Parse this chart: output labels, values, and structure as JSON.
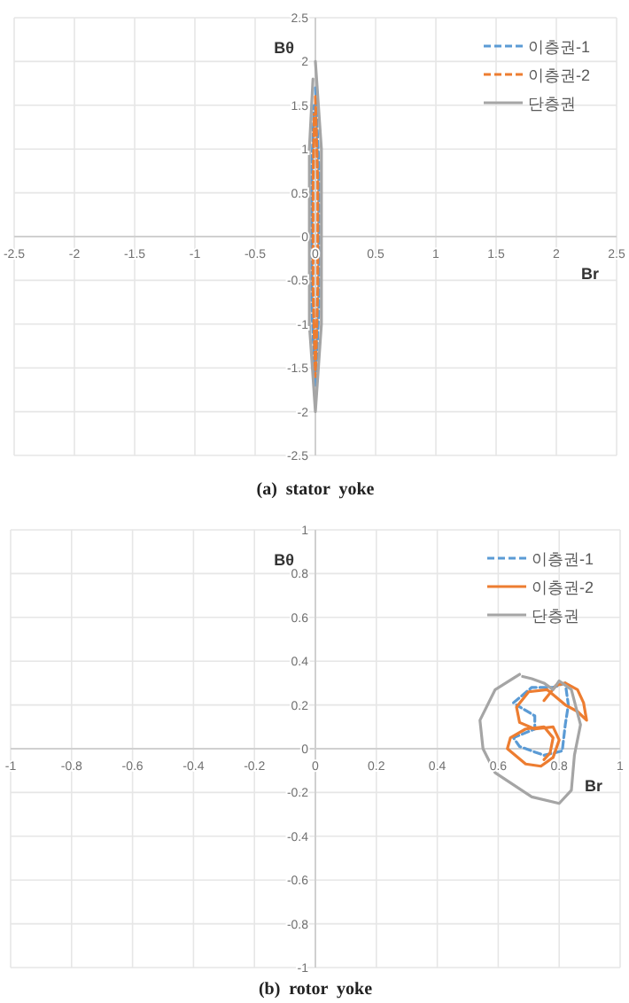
{
  "chart_data": [
    {
      "type": "line",
      "title": "(a)  stator  yoke",
      "xlabel": "Br",
      "ylabel": "Bθ",
      "xlim": [
        -2.5,
        2.5
      ],
      "ylim": [
        -2.5,
        2.5
      ],
      "xticks": [
        -2.5,
        -2,
        -1.5,
        -1,
        -0.5,
        0,
        0.5,
        1,
        1.5,
        2,
        2.5
      ],
      "yticks": [
        -2.5,
        -2,
        -1.5,
        -1,
        -0.5,
        0,
        0.5,
        1,
        1.5,
        2,
        2.5
      ],
      "grid": true,
      "legend": "top right",
      "series": [
        {
          "name": "이층권-1",
          "color": "#5b9bd5",
          "line_style": "dashed",
          "x": [
            0,
            0.03,
            0.03,
            0.03,
            0,
            -0.03,
            -0.03,
            -0.03,
            -0.01
          ],
          "values": [
            1.7,
            0.8,
            0,
            -0.8,
            -1.7,
            -0.8,
            0,
            0.8,
            1.5
          ]
        },
        {
          "name": "이층권-2",
          "color": "#ed7d31",
          "line_style": "dashed",
          "x": [
            0,
            0.02,
            0.02,
            0.02,
            0,
            -0.02,
            -0.02,
            -0.02,
            -0.01
          ],
          "values": [
            1.6,
            0.6,
            0,
            -0.6,
            -1.6,
            -0.6,
            0,
            0.6,
            1.4
          ]
        },
        {
          "name": "단층권",
          "color": "#a5a5a5",
          "line_style": "solid",
          "x": [
            0,
            0.05,
            0.05,
            0.05,
            0,
            -0.05,
            -0.05,
            -0.05,
            -0.02
          ],
          "values": [
            2,
            1,
            0,
            -1,
            -2,
            -1,
            0,
            1,
            1.8
          ]
        }
      ]
    },
    {
      "type": "line",
      "title": "(b)  rotor  yoke",
      "xlabel": "Br",
      "ylabel": "Bθ",
      "xlim": [
        -1,
        1
      ],
      "ylim": [
        -1,
        1
      ],
      "xticks": [
        -1,
        -0.8,
        -0.6,
        -0.4,
        -0.2,
        0,
        0.2,
        0.4,
        0.6,
        0.8,
        1
      ],
      "yticks": [
        -1,
        -0.8,
        -0.6,
        -0.4,
        -0.2,
        0,
        0.2,
        0.4,
        0.6,
        0.8,
        1
      ],
      "grid": true,
      "legend": "top right",
      "series": [
        {
          "name": "이층권-1",
          "color": "#5b9bd5",
          "line_style": "dashed",
          "x": [
            0.65,
            0.71,
            0.78,
            0.82,
            0.83,
            0.82,
            0.81,
            0.75,
            0.67,
            0.65,
            0.72,
            0.72,
            0.66
          ],
          "values": [
            0.21,
            0.28,
            0.28,
            0.3,
            0.2,
            0.11,
            -0.01,
            -0.03,
            0.01,
            0.05,
            0.09,
            0.15,
            0.2
          ]
        },
        {
          "name": "이층권-2",
          "color": "#ed7d31",
          "line_style": "solid",
          "x": [
            0.75,
            0.79,
            0.82,
            0.86,
            0.88,
            0.89,
            0.86,
            0.82,
            0.76,
            0.7,
            0.66,
            0.67,
            0.72,
            0.78,
            0.8,
            0.78,
            0.74,
            0.69,
            0.63,
            0.64,
            0.69,
            0.75,
            0.78,
            0.77,
            0.75
          ],
          "values": [
            0.22,
            0.29,
            0.3,
            0.27,
            0.21,
            0.13,
            0.17,
            0.2,
            0.27,
            0.26,
            0.19,
            0.12,
            0.09,
            0.1,
            0.04,
            -0.04,
            -0.08,
            -0.07,
            0,
            0.05,
            0.09,
            0.1,
            0.05,
            -0.02,
            -0.05
          ]
        },
        {
          "name": "단층권",
          "color": "#a5a5a5",
          "line_style": "solid",
          "x": [
            0.67,
            0.59,
            0.54,
            0.55,
            0.59,
            0.71,
            0.8,
            0.84,
            0.85,
            0.87,
            0.84,
            0.8,
            0.78,
            0.75,
            0.71,
            0.68
          ],
          "values": [
            0.34,
            0.27,
            0.13,
            0,
            -0.11,
            -0.22,
            -0.25,
            -0.19,
            -0.03,
            0.11,
            0.27,
            0.31,
            0.27,
            0.3,
            0.32,
            0.33
          ]
        }
      ]
    }
  ]
}
